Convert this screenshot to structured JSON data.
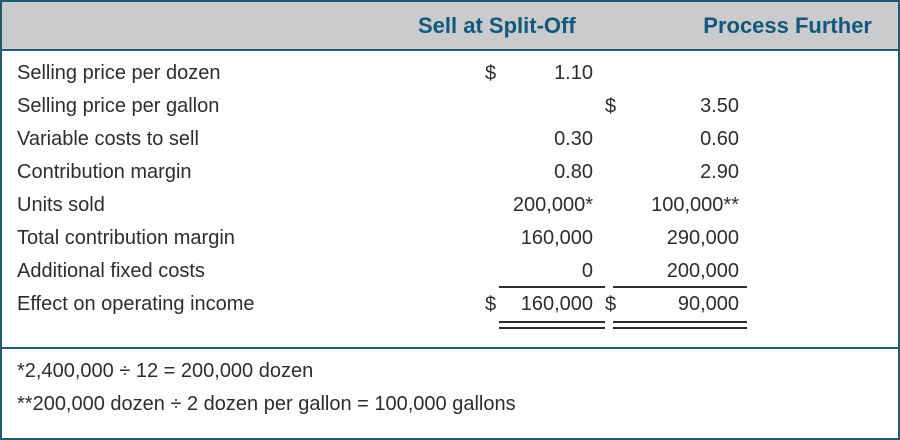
{
  "header": {
    "columns": [
      "Sell at Split-Off",
      "Process Further"
    ]
  },
  "rows": [
    {
      "label": "Selling price per dozen",
      "c1cur": "$",
      "c1": "1.10",
      "c2cur": "",
      "c2": "",
      "u": ""
    },
    {
      "label": "Selling price per gallon",
      "c1cur": "",
      "c1": "",
      "c2cur": "$",
      "c2": "3.50",
      "u": ""
    },
    {
      "label": "Variable costs to sell",
      "c1cur": "",
      "c1": "0.30",
      "c2cur": "",
      "c2": "0.60",
      "u": ""
    },
    {
      "label": "Contribution margin",
      "c1cur": "",
      "c1": "0.80",
      "c2cur": "",
      "c2": "2.90",
      "u": ""
    },
    {
      "label": "Units sold",
      "c1cur": "",
      "c1": "200,000*",
      "c2cur": "",
      "c2": "100,000**",
      "u": ""
    },
    {
      "label": "Total contribution margin",
      "c1cur": "",
      "c1": "160,000",
      "c2cur": "",
      "c2": "290,000",
      "u": ""
    },
    {
      "label": "Additional fixed costs",
      "c1cur": "",
      "c1": "0",
      "c2cur": "",
      "c2": "200,000",
      "u": "single"
    },
    {
      "label": "Effect on operating income",
      "c1cur": "$",
      "c1": "160,000",
      "c2cur": "$",
      "c2": "90,000",
      "u": "double"
    }
  ],
  "footnotes": [
    "*2,400,000 ÷ 12 = 200,000 dozen",
    "**200,000 dozen ÷ 2 dozen per gallon = 100,000 gallons"
  ],
  "colors": {
    "border_teal": "#1f5c74",
    "header_text": "#11587a",
    "header_bg": "#cacbcc",
    "body_text": "#2d2d2d"
  }
}
